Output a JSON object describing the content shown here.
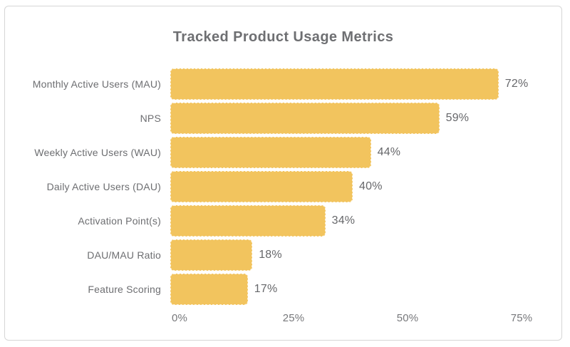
{
  "chart_data": {
    "type": "bar",
    "orientation": "horizontal",
    "title": "Tracked Product Usage Metrics",
    "categories": [
      "Monthly Active Users (MAU)",
      "NPS",
      "Weekly Active Users (WAU)",
      "Daily Active Users (DAU)",
      "Activation Point(s)",
      "DAU/MAU Ratio",
      "Feature Scoring"
    ],
    "values": [
      72,
      59,
      44,
      40,
      34,
      18,
      17
    ],
    "value_labels": [
      "72%",
      "59%",
      "44%",
      "40%",
      "34%",
      "18%",
      "17%"
    ],
    "value_suffix": "%",
    "xlabel": "",
    "ylabel": "",
    "x_tick_labels": [
      "0%",
      "25%",
      "50%",
      "75%"
    ],
    "x_tick_values": [
      0,
      25,
      50,
      75
    ],
    "xlim": [
      0,
      78
    ],
    "grid": false,
    "legend": false,
    "bar_color": "#F2C45E",
    "title_color": "#6e6f72",
    "label_color": "#6d6e71",
    "value_color": "#66676a",
    "background_color": "#ffffff",
    "card_border_color": "#d6d6d6"
  }
}
